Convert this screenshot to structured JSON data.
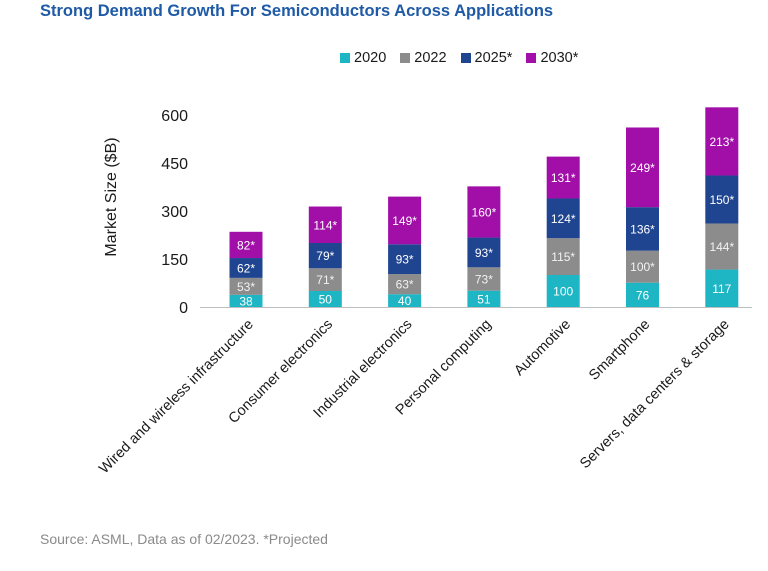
{
  "header": {
    "title": "Strong Demand Growth For Semiconductors Across Applications"
  },
  "footer": {
    "source": "Source: ASML, Data as of 02/2023. *Projected"
  },
  "chart_data": {
    "type": "bar",
    "stacked": true,
    "title": "Strong Demand Growth For Semiconductors Across Applications",
    "xlabel": "",
    "ylabel": "Market Size ($B)",
    "ylim": [
      0,
      600
    ],
    "yticks": [
      "0",
      "150",
      "300",
      "450",
      "600"
    ],
    "ytick_values": [
      0,
      150,
      300,
      450,
      600
    ],
    "legend_position": "top",
    "categories": [
      "Wired and wireless infrastructure",
      "Consumer electronics",
      "Industrial electronics",
      "Personal computing",
      "Automotive",
      "Smartphone",
      "Servers, data centers & storage"
    ],
    "series": [
      {
        "name": "2020",
        "color": "#1eb6c4",
        "values": [
          38,
          50,
          40,
          51,
          100,
          76,
          117
        ],
        "labels": [
          "38",
          "50",
          "40",
          "51",
          "100",
          "76",
          "117"
        ]
      },
      {
        "name": "2022",
        "color": "#8c8c8c",
        "values": [
          53,
          71,
          63,
          73,
          115,
          100,
          144
        ],
        "labels": [
          "53*",
          "71*",
          "63*",
          "73*",
          "115*",
          "100*",
          "144*"
        ]
      },
      {
        "name": "2025*",
        "color": "#1f4591",
        "values": [
          62,
          79,
          93,
          93,
          124,
          136,
          150
        ],
        "labels": [
          "62*",
          "79*",
          "93*",
          "93*",
          "124*",
          "136*",
          "150*"
        ]
      },
      {
        "name": "2030*",
        "color": "#a10fa8",
        "values": [
          82,
          114,
          149,
          160,
          131,
          249,
          213
        ],
        "labels": [
          "82*",
          "114*",
          "149*",
          "160*",
          "131*",
          "249*",
          "213*"
        ]
      }
    ]
  }
}
